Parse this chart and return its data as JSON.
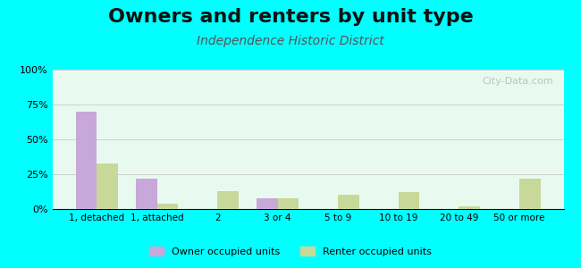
{
  "title": "Owners and renters by unit type",
  "subtitle": "Independence Historic District",
  "categories": [
    "1, detached",
    "1, attached",
    "2",
    "3 or 4",
    "5 to 9",
    "10 to 19",
    "20 to 49",
    "50 or more"
  ],
  "owner_values": [
    70,
    22,
    0,
    8,
    0,
    0,
    0,
    0
  ],
  "renter_values": [
    33,
    4,
    13,
    8,
    10,
    12,
    2,
    22
  ],
  "owner_color": "#c8a8d8",
  "renter_color": "#c8d898",
  "ylim": [
    0,
    100
  ],
  "yticks": [
    0,
    25,
    50,
    75,
    100
  ],
  "ytick_labels": [
    "0%",
    "25%",
    "50%",
    "75%",
    "100%"
  ],
  "background_color": "#e8faf0",
  "fig_background": "#00ffff",
  "title_fontsize": 16,
  "subtitle_fontsize": 10,
  "legend_owner": "Owner occupied units",
  "legend_renter": "Renter occupied units",
  "bar_width": 0.35
}
